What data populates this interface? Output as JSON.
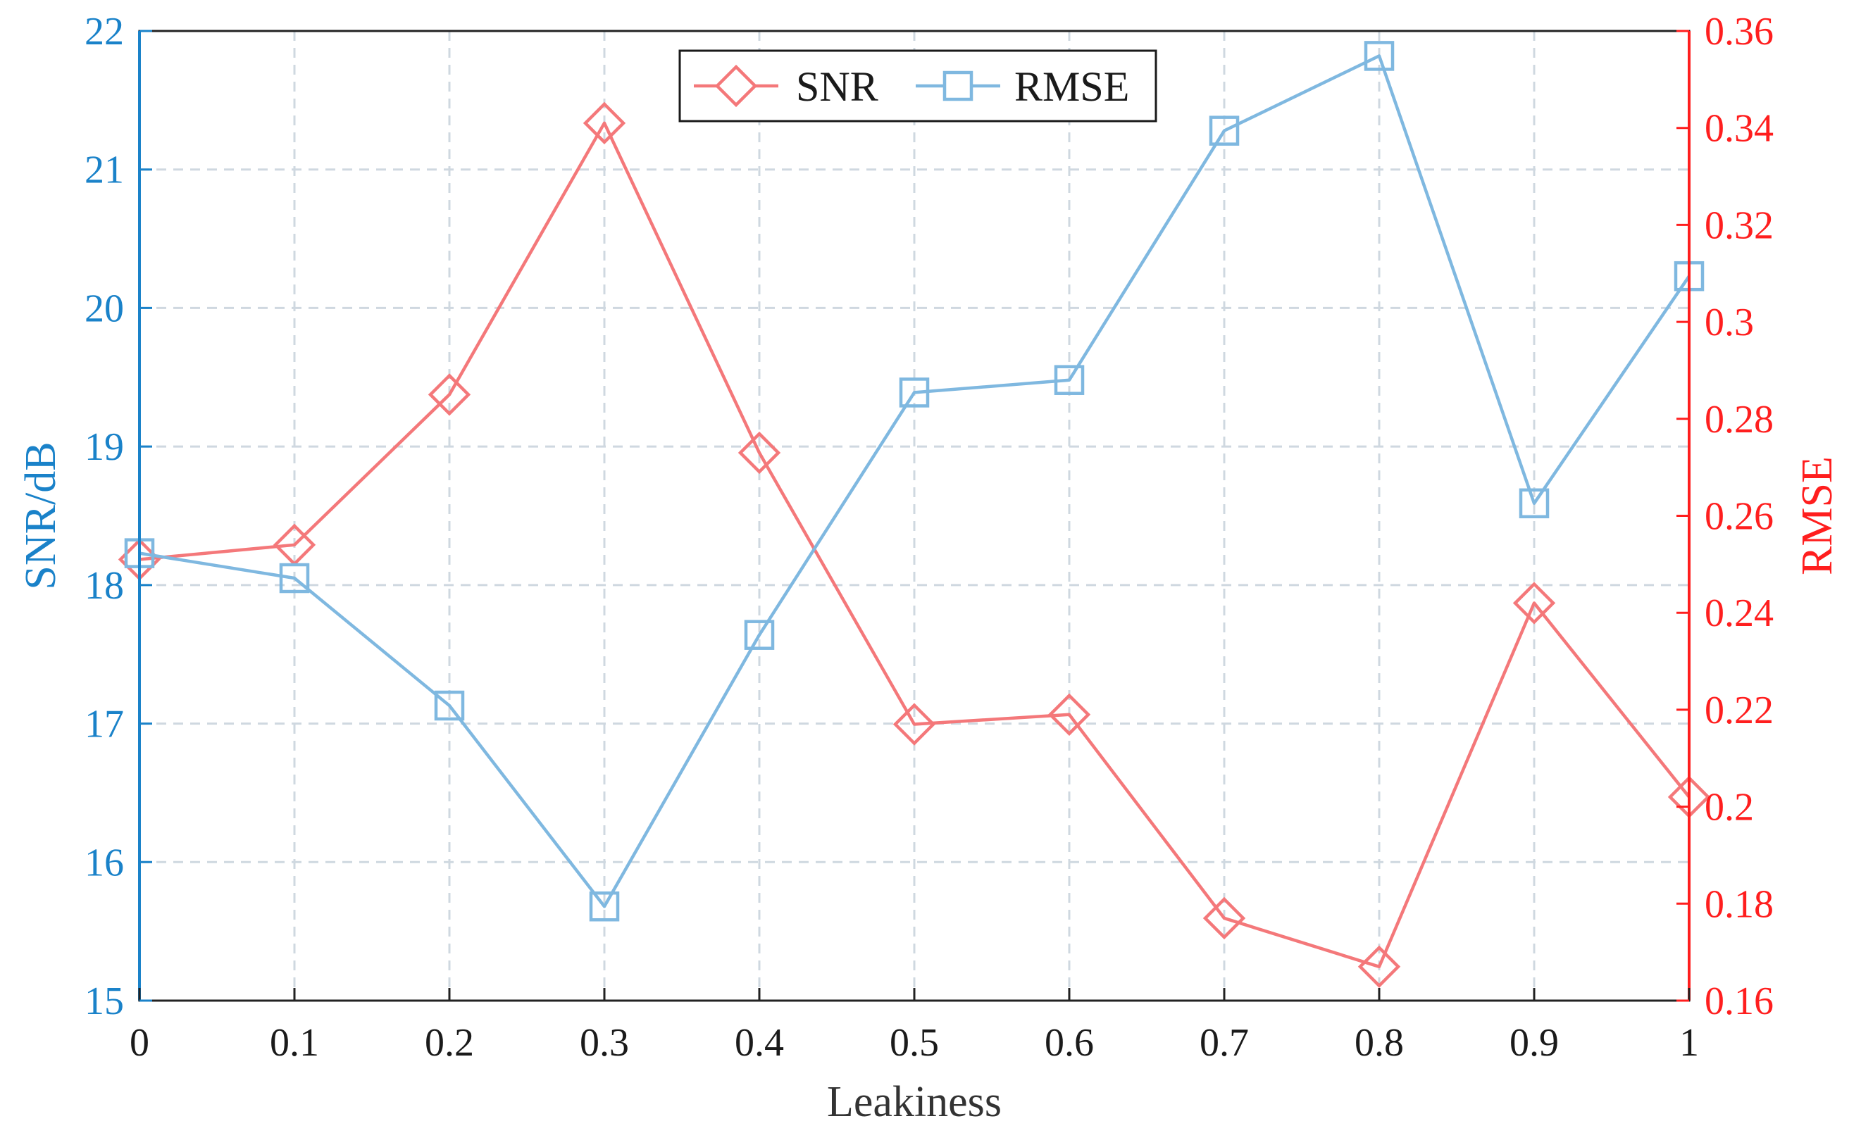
{
  "colors": {
    "snr_series": "#f4787a",
    "rmse_series": "#7fb8e0",
    "left_axis": "#1a82c9",
    "right_axis": "#ff1e1e",
    "grid": "#cfd8e0",
    "frame": "#222222"
  },
  "chart_data": {
    "type": "line",
    "xlabel": "Leakiness",
    "ylabel_left": "SNR/dB",
    "ylabel_right": "RMSE",
    "xlim": [
      0,
      1
    ],
    "ylim_left": [
      15,
      22
    ],
    "ylim_right": [
      0.16,
      0.36
    ],
    "x_ticks": [
      "0",
      "0.1",
      "0.2",
      "0.3",
      "0.4",
      "0.5",
      "0.6",
      "0.7",
      "0.8",
      "0.9",
      "1"
    ],
    "y_left_ticks": [
      "15",
      "16",
      "17",
      "18",
      "19",
      "20",
      "21",
      "22"
    ],
    "y_right_ticks": [
      "0.16",
      "0.18",
      "0.2",
      "0.22",
      "0.24",
      "0.26",
      "0.28",
      "0.3",
      "0.32",
      "0.34",
      "0.36"
    ],
    "grid": true,
    "legend_position": "top-center",
    "x": [
      0,
      0.1,
      0.2,
      0.3,
      0.4,
      0.5,
      0.6,
      0.7,
      0.8,
      0.9,
      1.0
    ],
    "series": [
      {
        "name": "SNR",
        "axis": "right",
        "marker": "diamond",
        "values": [
          0.251,
          0.254,
          0.285,
          0.341,
          0.273,
          0.217,
          0.219,
          0.177,
          0.167,
          0.242,
          0.202
        ]
      },
      {
        "name": "RMSE",
        "axis": "left",
        "marker": "square",
        "values": [
          18.23,
          18.05,
          17.13,
          15.68,
          17.64,
          19.39,
          19.48,
          21.28,
          21.82,
          18.59,
          20.23
        ]
      }
    ]
  }
}
